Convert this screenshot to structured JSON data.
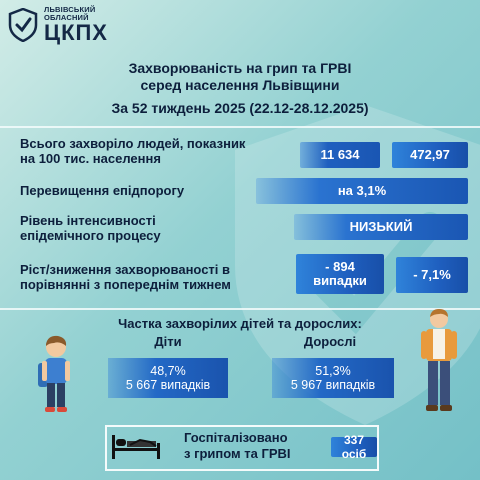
{
  "logo": {
    "org_line1": "ЛЬВІВСЬКИЙ",
    "org_line2": "ОБЛАСНИЙ",
    "abbr": "ЦКПХ"
  },
  "header": {
    "title_line1": "Захворюваність на грип та ГРВІ",
    "title_line2": "серед населення Львівщини",
    "week": "За 52 тиждень 2025 (22.12-28.12.2025)"
  },
  "stats": {
    "total": {
      "label_line1": "Всього захворіло людей, показник",
      "label_line2": "на 100 тис. населення",
      "count": "11 634",
      "rate": "472,97"
    },
    "threshold": {
      "label": "Перевищення епідпорогу",
      "value": "на 3,1%"
    },
    "intensity": {
      "label_line1": "Рівень інтенсивності",
      "label_line2": "епідемічного процесу",
      "value": "НИЗЬКИЙ"
    },
    "change": {
      "label_line1": "Ріст/зниження захворюваності   в",
      "label_line2": "порівнянні з попереднім тижнем",
      "cases_line1": "- 894",
      "cases_line2": "випадки",
      "percent": "- 7,1%"
    }
  },
  "share": {
    "title": "Частка захворілих дітей та дорослих:",
    "children": {
      "label": "Діти",
      "percent": "48,7%",
      "cases": "5 667 випадків"
    },
    "adults": {
      "label": "Дорослі",
      "percent": "51,3%",
      "cases": "5 967 випадків"
    }
  },
  "hospital": {
    "line1": "Госпіталізовано",
    "line2": "з грипом та ГРВІ",
    "count": "337 осіб"
  },
  "icons": {
    "logo": "shield-check-icon",
    "bed": "hospital-bed-icon",
    "child": "child-with-backpack-icon",
    "adult": "adult-man-icon"
  },
  "colors": {
    "pill_blue": "#1d5fba",
    "text_navy": "#0d1f3c",
    "background_teal": "#93d1d2"
  }
}
